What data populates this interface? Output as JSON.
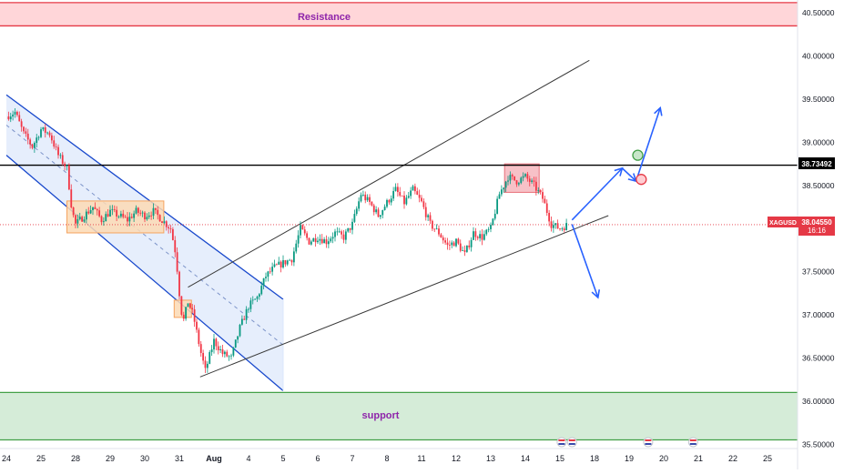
{
  "chart_data": {
    "type": "candlestick",
    "symbol": "XAGUSD",
    "last_price": "38.04550",
    "countdown": "16:16",
    "level_label": "38.73492",
    "level_value": 38.73492,
    "ylim": [
      35.45,
      40.65
    ],
    "y_ticks": [
      {
        "value": 40.5,
        "label": "40.50000"
      },
      {
        "value": 40.0,
        "label": "40.00000"
      },
      {
        "value": 39.5,
        "label": "39.50000"
      },
      {
        "value": 39.0,
        "label": "39.00000"
      },
      {
        "value": 38.5,
        "label": "38.50000"
      },
      {
        "value": 37.5,
        "label": "37.50000"
      },
      {
        "value": 37.0,
        "label": "37.00000"
      },
      {
        "value": 36.5,
        "label": "36.50000"
      },
      {
        "value": 36.0,
        "label": "36.00000"
      },
      {
        "value": 35.5,
        "label": "35.50000"
      }
    ],
    "x_ticks": [
      {
        "day": 0,
        "label": "24"
      },
      {
        "day": 1,
        "label": "25"
      },
      {
        "day": 2,
        "label": "28"
      },
      {
        "day": 3,
        "label": "29"
      },
      {
        "day": 4,
        "label": "30"
      },
      {
        "day": 5,
        "label": "31"
      },
      {
        "day": 6,
        "label": "Aug"
      },
      {
        "day": 7,
        "label": "4"
      },
      {
        "day": 8,
        "label": "5"
      },
      {
        "day": 9,
        "label": "6"
      },
      {
        "day": 10,
        "label": "7"
      },
      {
        "day": 11,
        "label": "8"
      },
      {
        "day": 12,
        "label": "11"
      },
      {
        "day": 13,
        "label": "12"
      },
      {
        "day": 14,
        "label": "13"
      },
      {
        "day": 15,
        "label": "14"
      },
      {
        "day": 16,
        "label": "15"
      },
      {
        "day": 17,
        "label": "18"
      },
      {
        "day": 18,
        "label": "19"
      },
      {
        "day": 19,
        "label": "20"
      },
      {
        "day": 20,
        "label": "21"
      },
      {
        "day": 21,
        "label": "22"
      },
      {
        "day": 22,
        "label": "25"
      }
    ],
    "price_path": [
      [
        0,
        39.3
      ],
      [
        0.25,
        39.35
      ],
      [
        0.5,
        39.1
      ],
      [
        0.75,
        38.95
      ],
      [
        1.0,
        39.15
      ],
      [
        1.25,
        39.1
      ],
      [
        1.5,
        38.85
      ],
      [
        1.75,
        38.7
      ],
      [
        1.9,
        38.2
      ],
      [
        2.0,
        38.05
      ],
      [
        2.25,
        38.15
      ],
      [
        2.5,
        38.25
      ],
      [
        2.75,
        38.1
      ],
      [
        3.0,
        38.2
      ],
      [
        3.25,
        38.15
      ],
      [
        3.5,
        38.1
      ],
      [
        3.75,
        38.2
      ],
      [
        4.0,
        38.15
      ],
      [
        4.25,
        38.2
      ],
      [
        4.5,
        38.1
      ],
      [
        4.75,
        38.0
      ],
      [
        4.9,
        37.7
      ],
      [
        5.0,
        37.25
      ],
      [
        5.1,
        36.9
      ],
      [
        5.25,
        37.15
      ],
      [
        5.4,
        37.0
      ],
      [
        5.6,
        36.6
      ],
      [
        5.75,
        36.35
      ],
      [
        6.0,
        36.7
      ],
      [
        6.25,
        36.55
      ],
      [
        6.5,
        36.5
      ],
      [
        6.75,
        36.85
      ],
      [
        7.0,
        37.1
      ],
      [
        7.25,
        37.2
      ],
      [
        7.5,
        37.45
      ],
      [
        7.75,
        37.55
      ],
      [
        8.0,
        37.6
      ],
      [
        8.25,
        37.65
      ],
      [
        8.5,
        38.0
      ],
      [
        8.75,
        37.85
      ],
      [
        9.0,
        37.9
      ],
      [
        9.25,
        37.85
      ],
      [
        9.5,
        37.95
      ],
      [
        9.75,
        37.9
      ],
      [
        10.0,
        38.05
      ],
      [
        10.25,
        38.4
      ],
      [
        10.5,
        38.3
      ],
      [
        10.75,
        38.15
      ],
      [
        11.0,
        38.3
      ],
      [
        11.25,
        38.45
      ],
      [
        11.5,
        38.3
      ],
      [
        11.75,
        38.45
      ],
      [
        12.0,
        38.3
      ],
      [
        12.25,
        38.05
      ],
      [
        12.5,
        37.95
      ],
      [
        12.75,
        37.8
      ],
      [
        13.0,
        37.85
      ],
      [
        13.25,
        37.7
      ],
      [
        13.5,
        37.95
      ],
      [
        13.75,
        37.9
      ],
      [
        14.0,
        38.0
      ],
      [
        14.25,
        38.4
      ],
      [
        14.5,
        38.6
      ],
      [
        14.75,
        38.55
      ],
      [
        15.0,
        38.6
      ],
      [
        15.25,
        38.5
      ],
      [
        15.5,
        38.35
      ],
      [
        15.75,
        38.05
      ],
      [
        16.0,
        38.0
      ],
      [
        16.2,
        38.04
      ]
    ],
    "zones": [
      {
        "name": "resistance",
        "label": "Resistance",
        "from": 40.35,
        "to": 40.62
      },
      {
        "name": "support",
        "label": "support",
        "from": 35.55,
        "to": 36.1
      }
    ],
    "colors": {
      "up": "#089981",
      "down": "#f23645",
      "resistance_fill": "#ffd6d9",
      "resistance_edge": "#e53946",
      "support_fill": "#d5ecd8",
      "support_edge": "#43a047",
      "zone_label": "#8e24aa",
      "channel": "#1848cc",
      "channel_fill": "#dbe7fb",
      "trend": "#3a3a3a",
      "arrow": "#2962ff",
      "tag": "#e53946",
      "level": "#000000",
      "box_orange": "#f5a35f",
      "box_red": "#e8707a",
      "green_dot": "#43a047",
      "red_dot": "#e53946"
    }
  }
}
